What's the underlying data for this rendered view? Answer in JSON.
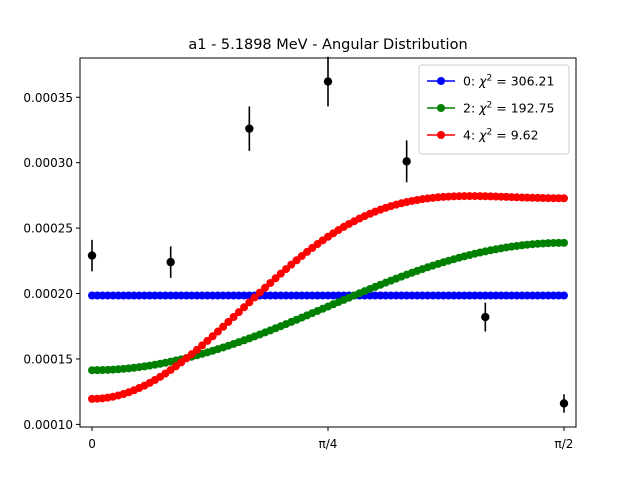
{
  "chart_data": {
    "type": "line",
    "title": "a1 - 5.1898 MeV - Angular Distribution",
    "xlabel": "",
    "ylabel": "",
    "xlim": [
      -0.04,
      1.6108
    ],
    "ylim": [
      9.8e-05,
      0.00038
    ],
    "x_ticks": [
      {
        "value": 0,
        "label": "0"
      },
      {
        "value": 0.785398,
        "label": "π/4"
      },
      {
        "value": 1.570796,
        "label": "π/2"
      }
    ],
    "y_ticks": [
      {
        "value": 0.0001,
        "label": "0.00010"
      },
      {
        "value": 0.00015,
        "label": "0.00015"
      },
      {
        "value": 0.0002,
        "label": "0.00020"
      },
      {
        "value": 0.00025,
        "label": "0.00025"
      },
      {
        "value": 0.0003,
        "label": "0.00030"
      },
      {
        "value": 0.00035,
        "label": "0.00035"
      }
    ],
    "legend_position": "top-right",
    "series": [
      {
        "name_prefix": "0: ",
        "chi_symbol": "χ",
        "chi_power": "2",
        "chi_value": " = 306.21",
        "color": "#0000ff",
        "model": "order0",
        "n_points": 91
      },
      {
        "name_prefix": "2: ",
        "chi_symbol": "χ",
        "chi_power": "2",
        "chi_value": " = 192.75",
        "color": "#008000",
        "model": "order2",
        "n_points": 91
      },
      {
        "name_prefix": "4: ",
        "chi_symbol": "χ",
        "chi_power": "2",
        "chi_value": " = 9.62",
        "color": "#ff0000",
        "model": "order4",
        "n_points": 91
      }
    ],
    "models": {
      "order0": {
        "a0": 0.0001985
      },
      "order2": {
        "a0": 0.0002063,
        "a2": -6.49e-05
      },
      "order4": {
        "a0": 0.0002469,
        "a2": -8.42e-05,
        "a4": -4.32e-05
      }
    },
    "measurements": {
      "color": "#000000",
      "x": [
        0,
        0.2618,
        0.5236,
        0.7854,
        1.0472,
        1.309,
        1.5708
      ],
      "y": [
        0.000229,
        0.000224,
        0.000326,
        0.000362,
        0.000301,
        0.000182,
        0.000116
      ],
      "err": [
        1.2e-05,
        1.2e-05,
        1.7e-05,
        1.9e-05,
        1.6e-05,
        1.1e-05,
        7e-06
      ]
    }
  }
}
